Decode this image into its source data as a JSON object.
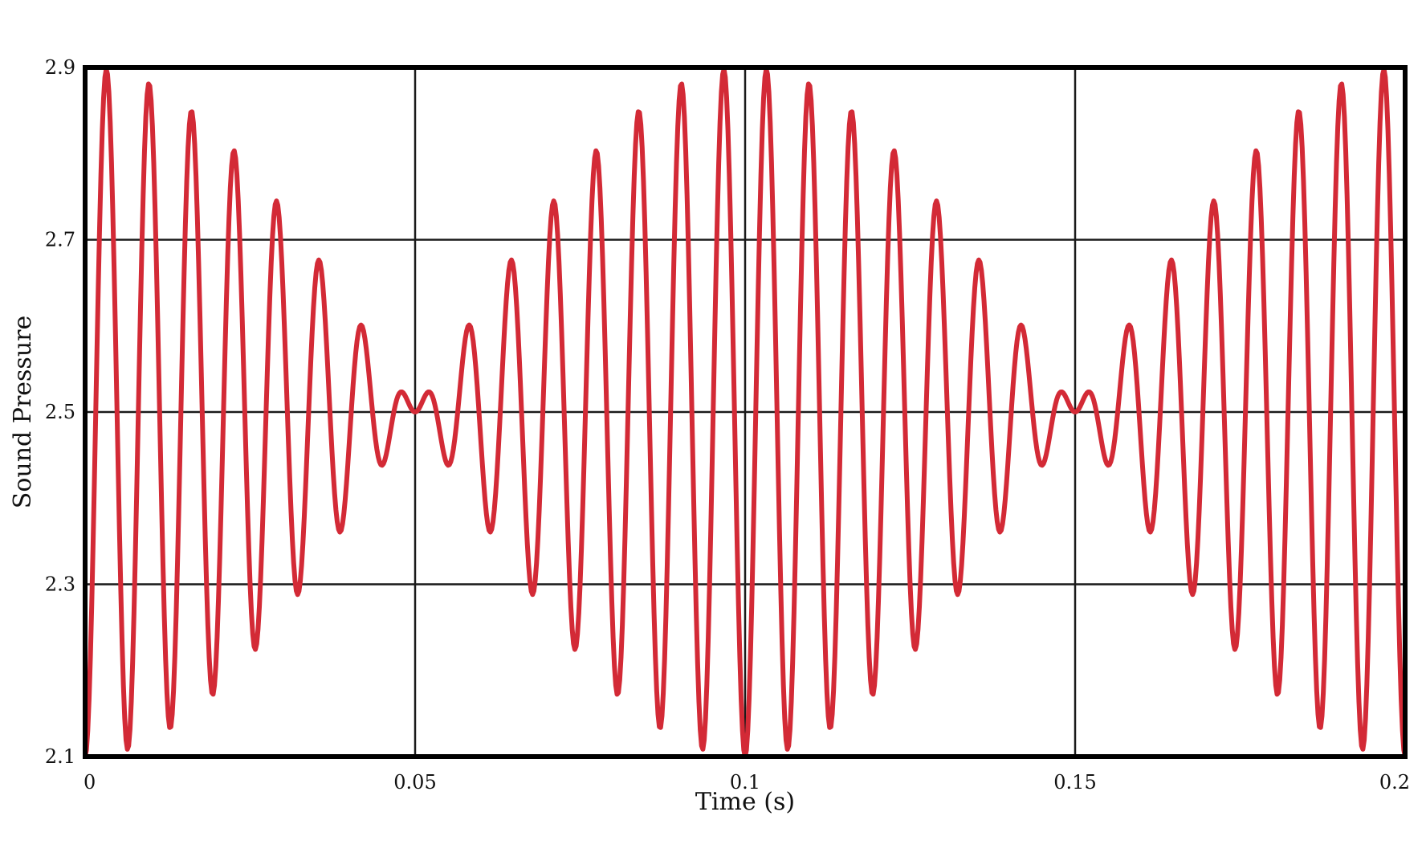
{
  "chart_data": {
    "type": "line",
    "title": "",
    "xlabel": "Time (s)",
    "ylabel": "Sound Pressure",
    "xlim": [
      0,
      0.2
    ],
    "ylim": [
      2.1,
      2.9
    ],
    "xticks": [
      0,
      0.05,
      0.1,
      0.15,
      0.2
    ],
    "xtick_labels": [
      "0",
      "0.05",
      "0.1",
      "0.15",
      "0.2"
    ],
    "yticks": [
      2.1,
      2.3,
      2.5,
      2.7,
      2.9
    ],
    "ytick_labels": [
      "2.1",
      "2.3",
      "2.5",
      "2.7",
      "2.9"
    ],
    "grid": true,
    "legend": "none",
    "series": [
      {
        "color": "#d32a36",
        "signal": {
          "kind": "beating sinusoid",
          "offset": 2.5,
          "amplitude_per_component": 0.2,
          "frequency_1_hz": 150,
          "frequency_2_hz": 160,
          "sample_interval_s": 0.0002
        }
      }
    ]
  }
}
